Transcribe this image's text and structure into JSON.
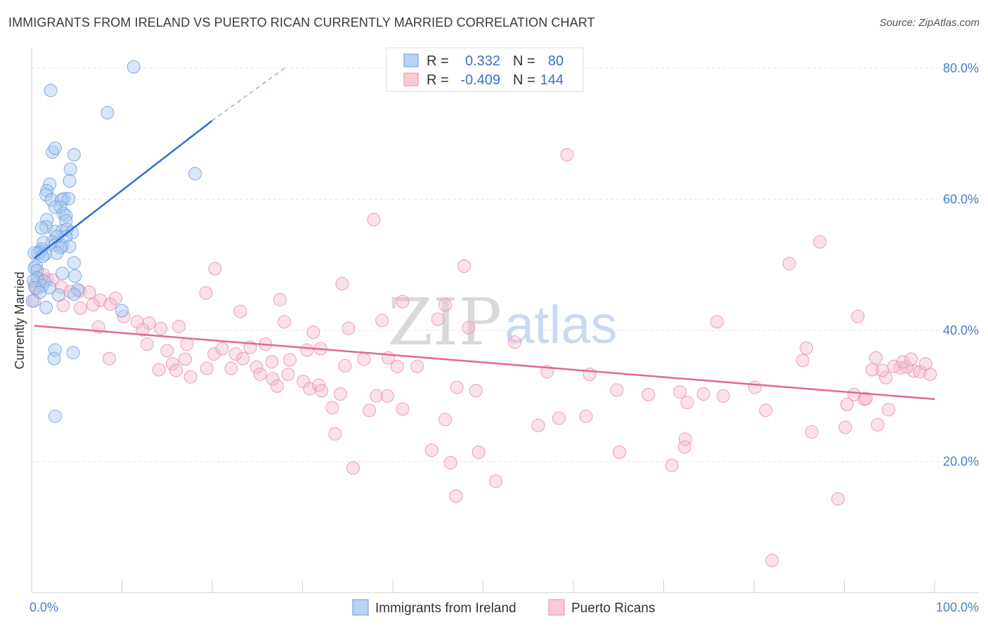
{
  "title": "IMMIGRANTS FROM IRELAND VS PUERTO RICAN CURRENTLY MARRIED CORRELATION CHART",
  "source": "Source: ZipAtlas.com",
  "watermark": {
    "zip": "ZIP",
    "atlas": "atlas"
  },
  "legend": {
    "r_label": "R =",
    "n_label": "N =",
    "rows": [
      {
        "r": "0.332",
        "n": "80",
        "color": "#a9c8f0",
        "stroke": "#6a9be0"
      },
      {
        "r": "-0.409",
        "n": "144",
        "color": "#f5bdd0",
        "stroke": "#e88aab"
      }
    ]
  },
  "bottom_legend": [
    {
      "label": "Immigrants from Ireland",
      "color": "#a9c8f0",
      "stroke": "#6a9be0"
    },
    {
      "label": "Puerto Ricans",
      "color": "#f5bdd0",
      "stroke": "#e88aab"
    }
  ],
  "chart_data": {
    "type": "scatter",
    "ylabel": "Currently Married",
    "xlim": [
      0,
      100
    ],
    "ylim": [
      0,
      80
    ],
    "x_tick_labels": [
      "0.0%",
      "100.0%"
    ],
    "y_ticks": [
      20,
      40,
      60,
      80
    ],
    "y_tick_labels": [
      "20.0%",
      "40.0%",
      "60.0%",
      "80.0%"
    ],
    "grid": true,
    "series": [
      {
        "name": "Immigrants from Ireland",
        "color": "#6a9be0",
        "fill": "#a9c8f0",
        "trend": {
          "x0": 0.3,
          "y0": 51,
          "x1": 20,
          "y1": 72,
          "x_ext": 28,
          "y_ext": 80
        },
        "points": [
          [
            11.3,
            80.2
          ],
          [
            2.1,
            76.6
          ],
          [
            8.4,
            73.2
          ],
          [
            18.1,
            63.9
          ],
          [
            2.3,
            67.2
          ],
          [
            2.6,
            67.8
          ],
          [
            4.7,
            66.8
          ],
          [
            4.3,
            64.6
          ],
          [
            4.2,
            62.8
          ],
          [
            2.0,
            62.3
          ],
          [
            1.7,
            61.3
          ],
          [
            1.6,
            60.7
          ],
          [
            3.6,
            60.1
          ],
          [
            4.1,
            60.1
          ],
          [
            2.2,
            59.9
          ],
          [
            3.3,
            59.9
          ],
          [
            3.2,
            58.8
          ],
          [
            2.6,
            58.8
          ],
          [
            3.5,
            57.8
          ],
          [
            3.8,
            57.5
          ],
          [
            3.8,
            56.7
          ],
          [
            1.7,
            56.9
          ],
          [
            1.6,
            55.8
          ],
          [
            1.1,
            55.6
          ],
          [
            2.6,
            55.1
          ],
          [
            3.4,
            55.2
          ],
          [
            3.9,
            55.4
          ],
          [
            4.5,
            54.9
          ],
          [
            3.8,
            54.3
          ],
          [
            2.8,
            54.3
          ],
          [
            2.3,
            53.5
          ],
          [
            1.3,
            53.4
          ],
          [
            2.6,
            53.0
          ],
          [
            3.4,
            52.9
          ],
          [
            4.2,
            52.8
          ],
          [
            3.2,
            52.6
          ],
          [
            1.1,
            52.4
          ],
          [
            1.0,
            52.0
          ],
          [
            0.7,
            51.8
          ],
          [
            1.5,
            51.6
          ],
          [
            0.3,
            51.8
          ],
          [
            1.2,
            51.3
          ],
          [
            2.8,
            51.8
          ],
          [
            0.5,
            49.8
          ],
          [
            0.3,
            49.5
          ],
          [
            0.6,
            49.1
          ],
          [
            3.4,
            48.7
          ],
          [
            4.7,
            50.3
          ],
          [
            4.8,
            48.3
          ],
          [
            0.6,
            48.0
          ],
          [
            0.2,
            47.6
          ],
          [
            1.4,
            47.5
          ],
          [
            1.2,
            46.8
          ],
          [
            0.4,
            46.5
          ],
          [
            2.0,
            46.5
          ],
          [
            5.1,
            46.2
          ],
          [
            0.9,
            45.8
          ],
          [
            4.7,
            45.5
          ],
          [
            3.0,
            45.4
          ],
          [
            1.6,
            43.5
          ],
          [
            10.0,
            43.0
          ],
          [
            0.1,
            44.5
          ],
          [
            2.6,
            37.0
          ],
          [
            4.6,
            36.6
          ],
          [
            2.5,
            35.7
          ],
          [
            2.6,
            26.9
          ]
        ]
      },
      {
        "name": "Puerto Ricans",
        "color": "#e88aab",
        "fill": "#f5bdd0",
        "trend": {
          "x0": 0.3,
          "y0": 40.7,
          "x1": 100,
          "y1": 29.5
        },
        "points": [
          [
            59.3,
            66.8
          ],
          [
            37.9,
            56.9
          ],
          [
            87.3,
            53.5
          ],
          [
            83.9,
            50.2
          ],
          [
            47.9,
            49.8
          ],
          [
            20.3,
            49.4
          ],
          [
            34.4,
            47.1
          ],
          [
            0.3,
            46.9
          ],
          [
            0.6,
            46.4
          ],
          [
            1.7,
            47.8
          ],
          [
            1.3,
            48.5
          ],
          [
            0.8,
            47.6
          ],
          [
            2.3,
            47.7
          ],
          [
            3.3,
            46.6
          ],
          [
            4.3,
            45.9
          ],
          [
            5.3,
            46.0
          ],
          [
            6.4,
            45.8
          ],
          [
            7.6,
            44.6
          ],
          [
            8.7,
            44.0
          ],
          [
            9.3,
            44.9
          ],
          [
            6.8,
            43.9
          ],
          [
            5.4,
            43.4
          ],
          [
            3.5,
            43.8
          ],
          [
            0.3,
            44.5
          ],
          [
            19.3,
            45.7
          ],
          [
            27.5,
            44.7
          ],
          [
            41.1,
            44.4
          ],
          [
            45.8,
            43.9
          ],
          [
            23.1,
            42.9
          ],
          [
            10.2,
            42.1
          ],
          [
            13.0,
            41.1
          ],
          [
            11.7,
            41.3
          ],
          [
            12.3,
            40.1
          ],
          [
            16.3,
            40.6
          ],
          [
            14.3,
            40.3
          ],
          [
            38.8,
            41.5
          ],
          [
            45.0,
            41.7
          ],
          [
            48.4,
            40.4
          ],
          [
            28.0,
            41.3
          ],
          [
            31.2,
            39.7
          ],
          [
            35.1,
            40.3
          ],
          [
            75.9,
            41.3
          ],
          [
            91.5,
            42.1
          ],
          [
            53.5,
            38.2
          ],
          [
            7.4,
            40.5
          ],
          [
            12.8,
            37.9
          ],
          [
            17.2,
            37.9
          ],
          [
            15.0,
            36.9
          ],
          [
            17.0,
            35.6
          ],
          [
            20.2,
            36.4
          ],
          [
            21.1,
            37.2
          ],
          [
            22.6,
            36.4
          ],
          [
            23.4,
            35.7
          ],
          [
            24.2,
            37.4
          ],
          [
            25.9,
            37.9
          ],
          [
            24.9,
            34.4
          ],
          [
            19.4,
            34.2
          ],
          [
            26.6,
            35.2
          ],
          [
            28.6,
            35.5
          ],
          [
            30.5,
            37.0
          ],
          [
            32.0,
            37.2
          ],
          [
            34.7,
            34.6
          ],
          [
            36.8,
            35.6
          ],
          [
            15.6,
            34.9
          ],
          [
            16.0,
            33.9
          ],
          [
            14.1,
            34.0
          ],
          [
            8.6,
            35.7
          ],
          [
            17.6,
            32.9
          ],
          [
            22.1,
            34.2
          ],
          [
            25.3,
            33.3
          ],
          [
            26.7,
            32.6
          ],
          [
            28.4,
            33.3
          ],
          [
            27.2,
            31.5
          ],
          [
            30.1,
            32.2
          ],
          [
            30.8,
            31.1
          ],
          [
            31.8,
            31.6
          ],
          [
            32.1,
            30.8
          ],
          [
            34.2,
            30.3
          ],
          [
            38.2,
            30.0
          ],
          [
            39.4,
            30.0
          ],
          [
            42.7,
            34.5
          ],
          [
            47.1,
            31.3
          ],
          [
            49.2,
            30.8
          ],
          [
            57.1,
            33.7
          ],
          [
            61.8,
            33.3
          ],
          [
            64.8,
            30.9
          ],
          [
            68.3,
            30.2
          ],
          [
            71.8,
            30.6
          ],
          [
            74.4,
            30.3
          ],
          [
            80.1,
            31.3
          ],
          [
            85.4,
            35.4
          ],
          [
            94.6,
            32.8
          ],
          [
            96.2,
            34.3
          ],
          [
            97.7,
            33.8
          ],
          [
            98.4,
            33.7
          ],
          [
            99.5,
            33.3
          ],
          [
            91.1,
            30.2
          ],
          [
            92.2,
            29.5
          ],
          [
            90.3,
            28.7
          ],
          [
            72.6,
            29.0
          ],
          [
            76.6,
            30.0
          ],
          [
            81.3,
            27.8
          ],
          [
            86.4,
            24.5
          ],
          [
            90.1,
            25.2
          ],
          [
            93.7,
            25.6
          ],
          [
            94.9,
            27.9
          ],
          [
            96.9,
            34.4
          ],
          [
            99.0,
            34.9
          ],
          [
            37.4,
            27.8
          ],
          [
            41.1,
            28.0
          ],
          [
            45.8,
            26.4
          ],
          [
            56.1,
            25.5
          ],
          [
            58.4,
            26.6
          ],
          [
            61.4,
            26.9
          ],
          [
            72.4,
            23.4
          ],
          [
            65.1,
            21.4
          ],
          [
            72.3,
            22.2
          ],
          [
            70.9,
            19.4
          ],
          [
            44.3,
            21.7
          ],
          [
            49.5,
            21.4
          ],
          [
            89.3,
            14.3
          ],
          [
            82.0,
            4.9
          ],
          [
            35.6,
            19.0
          ],
          [
            46.4,
            19.8
          ],
          [
            51.4,
            17.0
          ],
          [
            47.0,
            14.7
          ],
          [
            33.6,
            24.2
          ],
          [
            33.3,
            28.2
          ],
          [
            92.4,
            29.6
          ],
          [
            94.2,
            33.9
          ],
          [
            95.5,
            34.5
          ],
          [
            96.5,
            35.2
          ],
          [
            93.1,
            34.0
          ],
          [
            85.8,
            37.3
          ],
          [
            97.4,
            35.6
          ],
          [
            93.5,
            35.8
          ],
          [
            39.5,
            35.8
          ],
          [
            40.5,
            34.5
          ]
        ]
      }
    ]
  }
}
